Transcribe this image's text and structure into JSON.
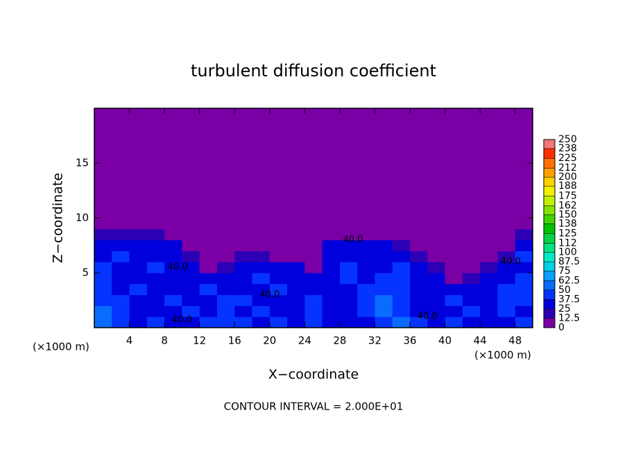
{
  "chart_data": {
    "type": "heatmap",
    "title": "turbulent diffusion coefficient",
    "xlabel": "X−coordinate",
    "ylabel": "Z−coordinate",
    "xunit_left": "(×1000 m)",
    "xunit_right": "(×1000 m)",
    "footnote": "CONTOUR INTERVAL = 2.000E+01",
    "xlim": [
      0,
      50
    ],
    "ylim": [
      0,
      20
    ],
    "xticks": [
      4,
      8,
      12,
      16,
      20,
      24,
      28,
      32,
      36,
      40,
      44,
      48
    ],
    "yticks": [
      5,
      10,
      15
    ],
    "xbins": [
      0,
      2,
      4,
      6,
      8,
      10,
      12,
      14,
      16,
      18,
      20,
      22,
      24,
      26,
      28,
      30,
      32,
      34,
      36,
      38,
      40,
      42,
      44,
      46,
      48,
      50
    ],
    "ybins": [
      0,
      1,
      2,
      3,
      4,
      5,
      6,
      7,
      8,
      9,
      20
    ],
    "z": [
      [
        55,
        40,
        35,
        40,
        35,
        30,
        40,
        45,
        40,
        35,
        40,
        35,
        40,
        35,
        30,
        35,
        45,
        50,
        40,
        35,
        40,
        35,
        30,
        35,
        40
      ],
      [
        50,
        40,
        35,
        30,
        35,
        40,
        35,
        40,
        35,
        40,
        35,
        30,
        40,
        35,
        35,
        40,
        50,
        45,
        35,
        30,
        35,
        40,
        35,
        40,
        35
      ],
      [
        45,
        40,
        30,
        35,
        40,
        30,
        35,
        40,
        40,
        35,
        30,
        35,
        40,
        30,
        35,
        45,
        50,
        40,
        30,
        35,
        40,
        30,
        35,
        40,
        40
      ],
      [
        45,
        35,
        40,
        30,
        35,
        25,
        40,
        35,
        30,
        35,
        40,
        35,
        30,
        25,
        35,
        40,
        45,
        40,
        35,
        30,
        30,
        25,
        35,
        40,
        45
      ],
      [
        40,
        35,
        30,
        35,
        30,
        35,
        25,
        30,
        35,
        40,
        35,
        30,
        25,
        30,
        40,
        35,
        40,
        45,
        35,
        25,
        10,
        15,
        25,
        35,
        40
      ],
      [
        40,
        30,
        35,
        40,
        35,
        30,
        10,
        15,
        25,
        35,
        30,
        25,
        10,
        35,
        40,
        30,
        35,
        40,
        30,
        15,
        5,
        10,
        15,
        30,
        35
      ],
      [
        35,
        40,
        30,
        35,
        30,
        20,
        5,
        5,
        15,
        20,
        10,
        5,
        5,
        35,
        30,
        35,
        30,
        35,
        20,
        5,
        0,
        5,
        5,
        15,
        40
      ],
      [
        35,
        30,
        35,
        30,
        25,
        5,
        0,
        0,
        5,
        5,
        0,
        0,
        0,
        25,
        30,
        25,
        30,
        20,
        5,
        0,
        0,
        0,
        0,
        5,
        35
      ],
      [
        15,
        20,
        15,
        20,
        10,
        0,
        0,
        0,
        0,
        0,
        0,
        0,
        0,
        5,
        10,
        10,
        10,
        5,
        0,
        0,
        0,
        0,
        0,
        0,
        15
      ],
      [
        0,
        0,
        0,
        0,
        0,
        0,
        0,
        0,
        0,
        0,
        0,
        0,
        0,
        0,
        0,
        0,
        0,
        0,
        0,
        0,
        0,
        0,
        0,
        0,
        0
      ]
    ],
    "colorbar": {
      "ticks": [
        0,
        12.5,
        25,
        37.5,
        50,
        62.5,
        75,
        87.5,
        100,
        112,
        125,
        138,
        150,
        162,
        175,
        188,
        200,
        212,
        225,
        238,
        250
      ],
      "colors": [
        "#7a00a6",
        "#2c00b4",
        "#0000dc",
        "#0634ff",
        "#0a6cff",
        "#0aa0ff",
        "#00d0e6",
        "#00e8c4",
        "#00e484",
        "#00d444",
        "#00c400",
        "#40d400",
        "#84e400",
        "#c4f000",
        "#f0f000",
        "#ffd000",
        "#ffa000",
        "#ff7000",
        "#ff3000",
        "#f07878"
      ]
    },
    "annotations": [
      {
        "text": "40.0",
        "x": 29.5,
        "y": 8.0
      },
      {
        "text": "40.0",
        "x": 9.5,
        "y": 5.5
      },
      {
        "text": "40.0",
        "x": 20.0,
        "y": 3.0
      },
      {
        "text": "40.0",
        "x": 10.0,
        "y": 0.7
      },
      {
        "text": "40.0",
        "x": 38.0,
        "y": 1.0
      },
      {
        "text": "40.0",
        "x": 47.5,
        "y": 6.0
      }
    ]
  }
}
